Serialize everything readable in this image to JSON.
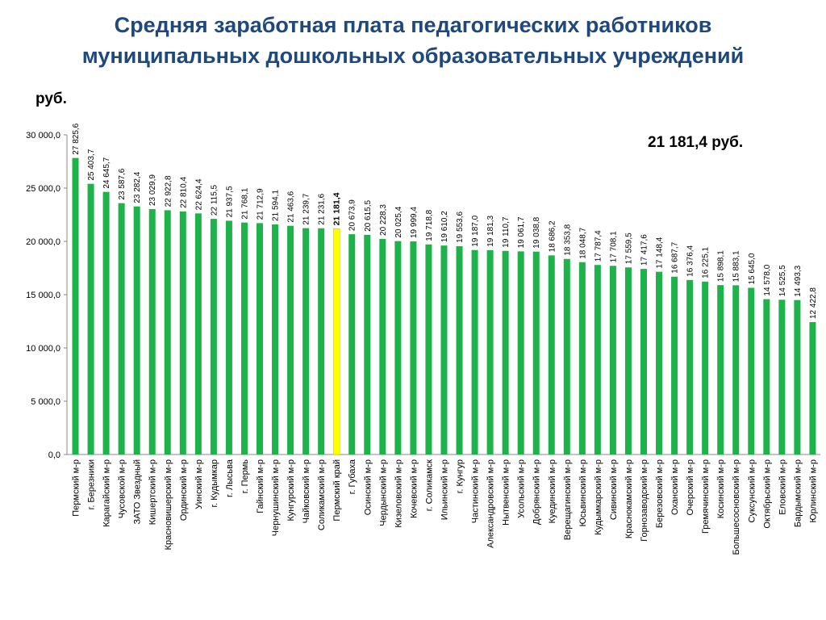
{
  "header": {
    "title_line1": "Средняя заработная плата педагогических работников",
    "title_line2": "муниципальных дошкольных образовательных учреждений",
    "unit": "руб.",
    "highlight": "21 181,4 руб."
  },
  "chart_data": {
    "type": "bar",
    "title": "Средняя заработная плата педагогических работников муниципальных дошкольных образовательных учреждений",
    "ylabel": "руб.",
    "xlabel": "",
    "ylim": [
      0,
      30000
    ],
    "yticks": [
      0,
      5000,
      10000,
      15000,
      20000,
      25000,
      30000
    ],
    "ytick_labels": [
      "0,0",
      "5 000,0",
      "10 000,0",
      "15 000,0",
      "20 000,0",
      "25 000,0",
      "30 000,0"
    ],
    "grid": false,
    "bar_color": "#1db34a",
    "highlight_color": "#ffff00",
    "highlight_index": 17,
    "categories": [
      "Пермский м-р",
      "г. Березники",
      "Карагайский м-р",
      "Чусовской м-р",
      "ЗАТО Звездный",
      "Кишертский м-р",
      "Красновишерский м-р",
      "Ординский м-р",
      "Уинский м-р",
      "г. Кудымкар",
      "г. Лысьва",
      "г. Пермь",
      "Гайнский м-р",
      "Чернушинский м-р",
      "Кунгурский м-р",
      "Чайковский м-р",
      "Соликамский м-р",
      "Пермский край",
      "г. Губаха",
      "Осинский м-р",
      "Чердынский м-р",
      "Кизеловский м-р",
      "Кочевский м-р",
      "г. Соликамск",
      "Ильинский м-р",
      "г. Кунгур",
      "Частинский м-р",
      "Александровский м-р",
      "Нытвенский м-р",
      "Усольский м-р",
      "Добрянский м-р",
      "Куединский м-р",
      "Верещагинский м-р",
      "Юсьвинский м-р",
      "Кудымкарский м-р",
      "Сивинский м-р",
      "Краснокамский м-р",
      "Горнозаводский м-р",
      "Березовский м-р",
      "Оханский м-р",
      "Очерский м-р",
      "Гремячинский м-р",
      "Косинский м-р",
      "Большесосновский м-р",
      "Суксунский м-р",
      "Октябрьский м-р",
      "Еловский м-р",
      "Бардымский м-р",
      "Юрлинский м-р"
    ],
    "values": [
      27825.6,
      25403.7,
      24645.7,
      23587.6,
      23282.4,
      23029.9,
      22922.8,
      22810.4,
      22624.4,
      22115.5,
      21937.5,
      21768.1,
      21712.9,
      21594.1,
      21463.6,
      21239.7,
      21231.6,
      21181.4,
      20673.9,
      20615.5,
      20228.3,
      20025.4,
      19999.4,
      19718.8,
      19610.2,
      19553.6,
      19187.0,
      19181.3,
      19110.7,
      19061.7,
      19038.8,
      18686.2,
      18353.8,
      18048.7,
      17787.4,
      17708.1,
      17559.5,
      17417.6,
      17148.4,
      16687.7,
      16376.4,
      16225.1,
      15898.1,
      15883.1,
      15645.0,
      14578.0,
      14525.5,
      14493.3,
      12422.8
    ],
    "value_labels": [
      "27 825,6",
      "25 403,7",
      "24 645,7",
      "23 587,6",
      "23 282,4",
      "23 029,9",
      "22 922,8",
      "22 810,4",
      "22 624,4",
      "22 115,5",
      "21 937,5",
      "21 768,1",
      "21 712,9",
      "21 594,1",
      "21 463,6",
      "21 239,7",
      "21 231,6",
      "21 181,4",
      "20 673,9",
      "20 615,5",
      "20 228,3",
      "20 025,4",
      "19 999,4",
      "19 718,8",
      "19 610,2",
      "19 553,6",
      "19 187,0",
      "19 181,3",
      "19 110,7",
      "19 061,7",
      "19 038,8",
      "18 686,2",
      "18 353,8",
      "18 048,7",
      "17 787,4",
      "17 708,1",
      "17 559,5",
      "17 417,6",
      "17 148,4",
      "16 687,7",
      "16 376,4",
      "16 225,1",
      "15 898,1",
      "15 883,1",
      "15 645,0",
      "14 578,0",
      "14 525,5",
      "14 493,3",
      "12 422,8"
    ]
  }
}
